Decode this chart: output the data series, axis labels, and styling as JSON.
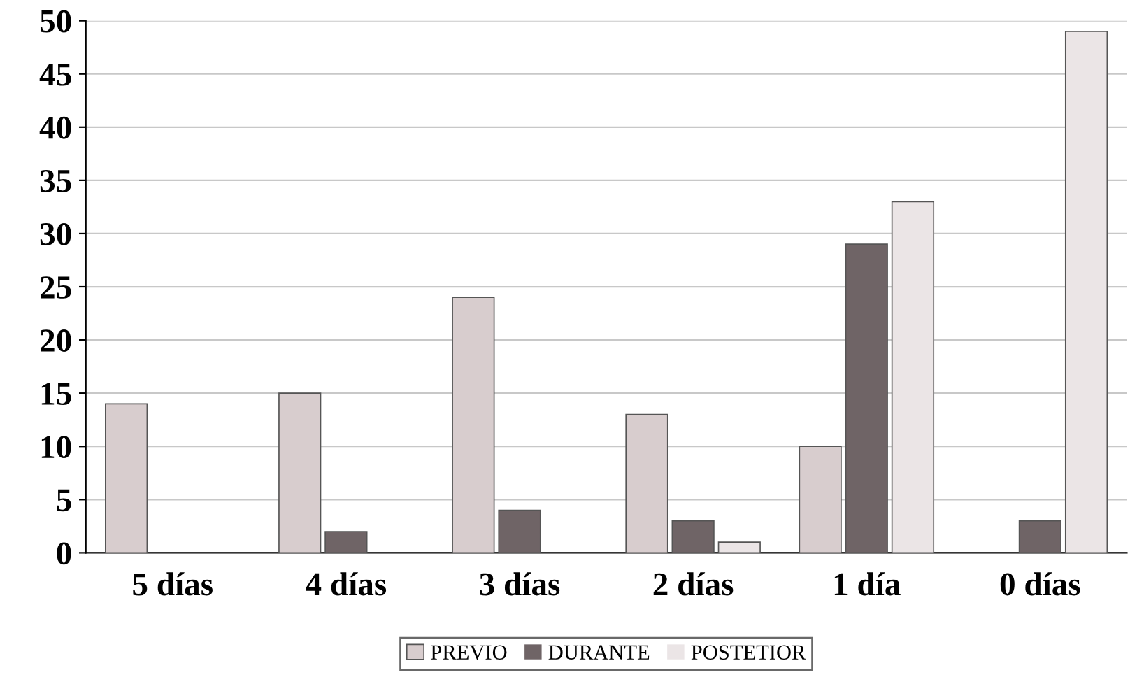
{
  "chart_data": {
    "type": "bar",
    "categories": [
      "5 días",
      "4 días",
      "3 días",
      "2 días",
      "1 día",
      "0 días"
    ],
    "series": [
      {
        "name": "PREVIO",
        "color": "#d8cdce",
        "values": [
          14,
          15,
          24,
          13,
          10,
          0
        ]
      },
      {
        "name": "DURANTE",
        "color": "#6f6466",
        "values": [
          0,
          2,
          4,
          3,
          29,
          3
        ]
      },
      {
        "name": "POSTETIOR",
        "color": "#ebe5e6",
        "values": [
          0,
          0,
          0,
          1,
          33,
          49
        ]
      }
    ],
    "ylim": [
      0,
      50
    ],
    "yticks": [
      0,
      5,
      10,
      15,
      20,
      25,
      30,
      35,
      40,
      45,
      50
    ],
    "grid": "y",
    "legend": "bottom"
  }
}
